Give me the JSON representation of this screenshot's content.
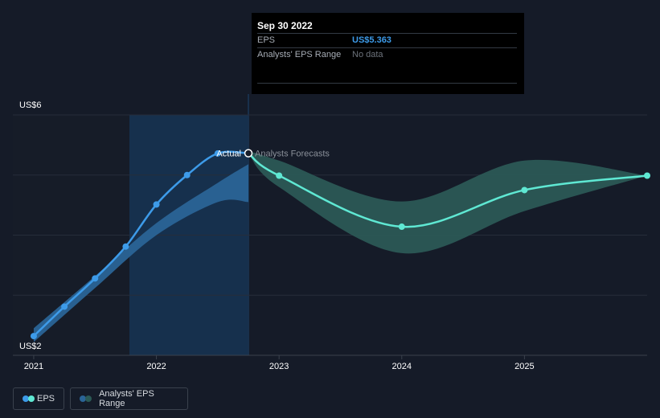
{
  "tooltip": {
    "date": "Sep 30 2022",
    "rows": [
      {
        "label": "EPS",
        "value": "US$5.363"
      },
      {
        "label": "Analysts' EPS Range",
        "value": "No data"
      }
    ]
  },
  "legend": [
    {
      "label": "EPS",
      "colors": [
        "#3d9be9",
        "#5fe8d3"
      ]
    },
    {
      "label": "Analysts' EPS Range",
      "colors": [
        "#2a6496",
        "#2b5955"
      ]
    }
  ],
  "chart_data": {
    "type": "line",
    "y_axis_labels": [
      "US$6",
      "US$2"
    ],
    "ylim": [
      2,
      6
    ],
    "x_ticks": [
      {
        "label": "2021",
        "x": 2021.0
      },
      {
        "label": "2022",
        "x": 2022.0
      },
      {
        "label": "2023",
        "x": 2023.0
      },
      {
        "label": "2024",
        "x": 2024.0
      },
      {
        "label": "2025",
        "x": 2025.0
      }
    ],
    "xlim": [
      2020.83,
      2026.0
    ],
    "divider_x": 2022.75,
    "annotations": {
      "actual": "Actual",
      "forecast": "Analysts Forecasts"
    },
    "series": [
      {
        "key": "actual",
        "color": "#3d9be9",
        "points": [
          [
            2021.0,
            2.32
          ],
          [
            2021.25,
            2.81
          ],
          [
            2021.5,
            3.28
          ],
          [
            2021.75,
            3.81
          ],
          [
            2022.0,
            4.51
          ],
          [
            2022.25,
            5.0
          ],
          [
            2022.5,
            5.36
          ],
          [
            2022.75,
            5.363
          ]
        ]
      },
      {
        "key": "forecast",
        "color": "#5fe8d3",
        "points": [
          [
            2022.75,
            5.363
          ],
          [
            2023.0,
            4.99
          ],
          [
            2024.0,
            4.14
          ],
          [
            2025.0,
            4.75
          ],
          [
            2026.0,
            4.99
          ]
        ]
      }
    ],
    "ranges": [
      {
        "key": "actual-range",
        "color": "#2a6496",
        "upper": [
          [
            2021.0,
            2.45
          ],
          [
            2021.5,
            3.32
          ],
          [
            2022.0,
            4.2
          ],
          [
            2022.5,
            4.87
          ],
          [
            2022.75,
            5.18
          ]
        ],
        "lower": [
          [
            2021.0,
            2.22
          ],
          [
            2021.5,
            3.12
          ],
          [
            2022.0,
            4.0
          ],
          [
            2022.5,
            4.55
          ],
          [
            2022.75,
            4.55
          ]
        ]
      },
      {
        "key": "forecast-range",
        "color": "#2b5955",
        "upper": [
          [
            2022.75,
            5.4
          ],
          [
            2023.0,
            5.24
          ],
          [
            2024.0,
            4.56
          ],
          [
            2025.0,
            5.24
          ],
          [
            2026.0,
            4.99
          ]
        ],
        "lower": [
          [
            2022.75,
            5.363
          ],
          [
            2023.0,
            4.8
          ],
          [
            2024.0,
            3.7
          ],
          [
            2025.0,
            4.4
          ],
          [
            2026.0,
            4.99
          ]
        ]
      }
    ]
  }
}
